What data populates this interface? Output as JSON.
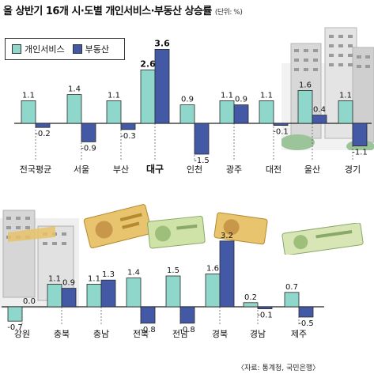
{
  "title": "올 상반기 16개 시·도별 개인서비스·부동산 상승률",
  "unit": "(단위: %)",
  "source": "〈자료: 통계청, 국민은행〉",
  "colors": {
    "personal_service": "#8fd6cb",
    "real_estate": "#4459a6"
  },
  "legend": {
    "personal_service": "개인서비스",
    "real_estate": "부동산"
  },
  "chart_data": [
    {
      "type": "bar",
      "categories": [
        "전국평균",
        "서울",
        "부산",
        "대구",
        "인천",
        "광주",
        "대전",
        "울산",
        "경기"
      ],
      "highlight": "대구",
      "series": [
        {
          "name": "개인서비스",
          "values": [
            1.1,
            1.4,
            1.1,
            2.6,
            0.9,
            1.1,
            1.1,
            1.6,
            1.1
          ],
          "labels": [
            "1.1",
            "1.4",
            "1.1",
            "2.6",
            "0.9",
            "1.1",
            "1.1",
            "1.6",
            "1.1"
          ]
        },
        {
          "name": "부동산",
          "values": [
            -0.2,
            -0.9,
            -0.3,
            3.6,
            -1.5,
            0.9,
            -0.1,
            0.4,
            -1.1
          ],
          "labels": [
            "-0.2",
            "-0.9",
            "-0.3",
            "3.6",
            "-1.5",
            "0.9",
            "-0.1",
            "0.4",
            "-1.1"
          ]
        }
      ]
    },
    {
      "type": "bar",
      "categories": [
        "강원",
        "충북",
        "충남",
        "전북",
        "전남",
        "경북",
        "경남",
        "제주"
      ],
      "series": [
        {
          "name": "개인서비스",
          "values": [
            -0.7,
            1.1,
            1.1,
            1.4,
            1.5,
            1.6,
            0.2,
            0.7
          ],
          "labels": [
            "-0.7",
            "1.1",
            "1.1",
            "1.4",
            "1.5",
            "1.6",
            "0.2",
            "0.7"
          ]
        },
        {
          "name": "부동산",
          "values": [
            0.0,
            0.9,
            1.3,
            -0.8,
            -0.8,
            3.2,
            -0.1,
            -0.5
          ],
          "labels": [
            "0.0",
            "0.9",
            "1.3",
            "-0.8",
            "-0.8",
            "3.2",
            "-0.1",
            "-0.5"
          ]
        }
      ]
    }
  ]
}
